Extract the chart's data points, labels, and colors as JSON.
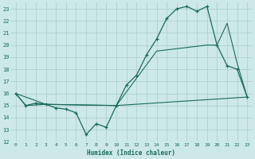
{
  "xlabel": "Humidex (Indice chaleur)",
  "bg_color": "#cce8e8",
  "grid_color": "#aacccc",
  "line_color": "#1a6b5a",
  "xlim": [
    -0.5,
    23.5
  ],
  "ylim": [
    12,
    23.5
  ],
  "yticks": [
    12,
    13,
    14,
    15,
    16,
    17,
    18,
    19,
    20,
    21,
    22,
    23
  ],
  "xticks": [
    0,
    1,
    2,
    3,
    4,
    5,
    6,
    7,
    8,
    9,
    10,
    11,
    12,
    13,
    14,
    15,
    16,
    17,
    18,
    19,
    20,
    21,
    22,
    23
  ],
  "line1_x": [
    0,
    1,
    2,
    3,
    4,
    5,
    6,
    7,
    8,
    9,
    10,
    11,
    12,
    13,
    14,
    15,
    16,
    17,
    18,
    19,
    20,
    21,
    22,
    23
  ],
  "line1_y": [
    16,
    15,
    15.2,
    15.1,
    14.8,
    14.7,
    14.4,
    12.6,
    13.5,
    13.2,
    15.0,
    16.7,
    17.5,
    19.2,
    20.5,
    22.2,
    23.0,
    23.2,
    22.8,
    23.2,
    20.0,
    18.3,
    18.0,
    15.7
  ],
  "line2_x": [
    0,
    1,
    3,
    10,
    23
  ],
  "line2_y": [
    16,
    15,
    15.1,
    15.0,
    15.7
  ],
  "line3_x": [
    0,
    3,
    10,
    14,
    19,
    20,
    21,
    22,
    23
  ],
  "line3_y": [
    16,
    15.1,
    15.0,
    19.5,
    20.0,
    20.0,
    21.8,
    18.5,
    15.7
  ]
}
